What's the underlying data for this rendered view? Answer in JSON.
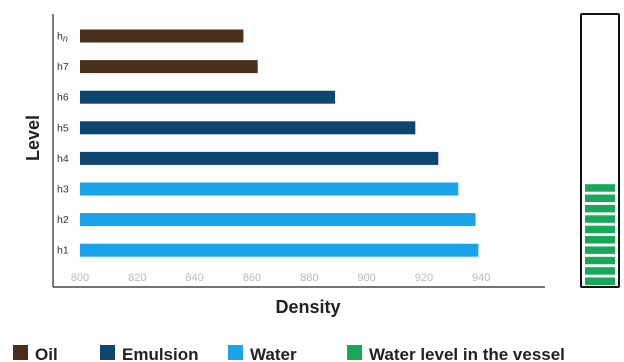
{
  "chart_data": {
    "type": "bar",
    "orientation": "horizontal",
    "xlabel": "Density",
    "ylabel": "Level",
    "xlim": [
      790,
      970
    ],
    "x_ticks": [
      "800",
      "820",
      "840",
      "860",
      "880",
      "900",
      "920",
      "940"
    ],
    "categories": [
      {
        "base": "h",
        "sub": "n"
      },
      {
        "base": "h7",
        "sub": ""
      },
      {
        "base": "h6",
        "sub": ""
      },
      {
        "base": "h5",
        "sub": ""
      },
      {
        "base": "h4",
        "sub": ""
      },
      {
        "base": "h3",
        "sub": ""
      },
      {
        "base": "h2",
        "sub": ""
      },
      {
        "base": "h1",
        "sub": ""
      }
    ],
    "values": [
      857,
      862,
      889,
      917,
      925,
      932,
      938,
      939
    ],
    "bar_phase": [
      "Oil",
      "Oil",
      "Emulsion",
      "Emulsion",
      "Emulsion",
      "Water",
      "Water",
      "Water"
    ],
    "grid": false,
    "legend_position": "bottom",
    "legend": [
      {
        "key": "oil",
        "label": "Oil",
        "color": "#4a2f1d"
      },
      {
        "key": "emulsion",
        "label": "Emulsion",
        "color": "#0d4671"
      },
      {
        "key": "water",
        "label": "Water",
        "color": "#1aa3e8"
      },
      {
        "key": "vessel",
        "label": "Water level in the vessel",
        "color": "#19a75a"
      }
    ],
    "vessel": {
      "water_fraction": 0.38,
      "segments": 10
    }
  }
}
